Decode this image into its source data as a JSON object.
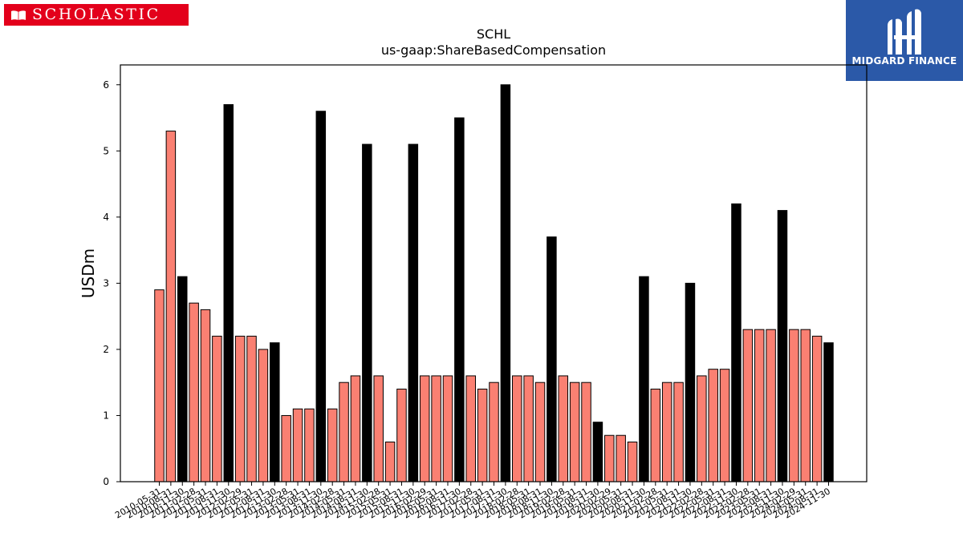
{
  "logos": {
    "left": {
      "text": "SCHOLASTIC",
      "color": "#e3001b",
      "icon": "open-book-icon"
    },
    "right": {
      "text": "MIDGARD FINANCE",
      "color": "#2b59a8",
      "icon": "midgard-mark-icon"
    }
  },
  "chart_data": {
    "type": "bar",
    "title": "SCHL",
    "subtitle": "us-gaap:ShareBasedCompensation",
    "xlabel": "",
    "ylabel": "USDm",
    "ylim": [
      0,
      6.3
    ],
    "yticks": [
      0,
      1,
      2,
      3,
      4,
      5,
      6
    ],
    "grid": false,
    "legend": "none",
    "colors": {
      "quarterly": "#fa8072",
      "annual": "#000000",
      "edge": "#000000"
    },
    "categories": [
      "2010-05-31",
      "2010-08-31",
      "2010-11-30",
      "2011-02-28",
      "2011-05-31",
      "2011-08-31",
      "2011-11-30",
      "2012-02-29",
      "2012-05-31",
      "2012-08-31",
      "2012-11-30",
      "2013-02-28",
      "2013-05-31",
      "2013-08-31",
      "2013-11-30",
      "2014-02-28",
      "2014-05-31",
      "2014-08-31",
      "2014-11-30",
      "2015-02-28",
      "2015-05-31",
      "2015-08-31",
      "2015-11-30",
      "2016-02-29",
      "2016-05-31",
      "2016-08-31",
      "2016-11-30",
      "2017-02-28",
      "2017-05-31",
      "2017-08-31",
      "2017-11-30",
      "2018-02-28",
      "2018-05-31",
      "2018-08-31",
      "2018-11-30",
      "2019-02-28",
      "2019-05-31",
      "2019-08-31",
      "2019-11-30",
      "2020-02-29",
      "2020-05-31",
      "2020-08-31",
      "2020-11-30",
      "2021-02-28",
      "2021-05-31",
      "2021-08-31",
      "2021-11-30",
      "2022-02-28",
      "2022-05-31",
      "2022-08-31",
      "2022-11-30",
      "2023-02-28",
      "2023-05-31",
      "2023-08-31",
      "2023-11-30",
      "2024-02-29",
      "2024-05-31",
      "2024-08-31",
      "2024-11-30"
    ],
    "values": [
      2.9,
      5.3,
      3.1,
      2.7,
      2.6,
      2.2,
      5.7,
      2.2,
      2.2,
      2.0,
      2.1,
      1.0,
      1.1,
      1.1,
      5.6,
      1.1,
      1.5,
      1.6,
      5.1,
      1.6,
      0.6,
      1.4,
      5.1,
      1.6,
      1.6,
      1.6,
      5.5,
      1.6,
      1.4,
      1.5,
      6.0,
      1.6,
      1.6,
      1.5,
      3.7,
      1.6,
      1.5,
      1.5,
      0.9,
      0.7,
      0.7,
      0.6,
      3.1,
      1.4,
      1.5,
      1.5,
      3.0,
      1.6,
      1.7,
      1.7,
      4.2,
      2.3,
      2.3,
      2.3,
      4.1,
      2.3,
      2.3,
      2.2,
      2.1
    ],
    "annual_flags": [
      false,
      false,
      true,
      false,
      false,
      false,
      true,
      false,
      false,
      false,
      true,
      false,
      false,
      false,
      true,
      false,
      false,
      false,
      true,
      false,
      false,
      false,
      true,
      false,
      false,
      false,
      true,
      false,
      false,
      false,
      true,
      false,
      false,
      false,
      true,
      false,
      false,
      false,
      true,
      false,
      false,
      false,
      true,
      false,
      false,
      false,
      true,
      false,
      false,
      false,
      true,
      false,
      false,
      false,
      true,
      false,
      false,
      false,
      true
    ]
  }
}
